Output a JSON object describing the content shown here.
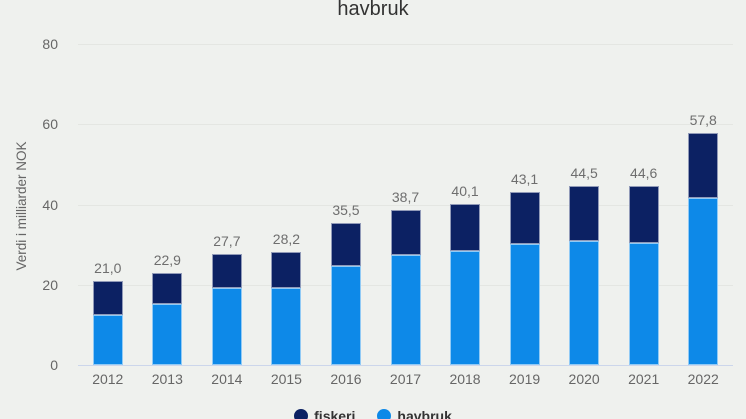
{
  "title": "havbruk",
  "y_axis": {
    "title": "Verdi i milliarder NOK",
    "ticks": [
      0,
      20,
      40,
      60,
      80
    ]
  },
  "legend": [
    {
      "label": "fiskeri",
      "color": "#0c2163"
    },
    {
      "label": "havbruk",
      "color": "#0d89e8"
    }
  ],
  "chart_data": {
    "type": "bar",
    "stacked": true,
    "title": "havbruk",
    "ylabel": "Verdi i milliarder NOK",
    "ylim": [
      0,
      80
    ],
    "grid": true,
    "legend_position": "bottom",
    "categories": [
      "2012",
      "2013",
      "2014",
      "2015",
      "2016",
      "2017",
      "2018",
      "2019",
      "2020",
      "2021",
      "2022"
    ],
    "series": [
      {
        "name": "havbruk",
        "color": "#0d89e8",
        "values": [
          12.5,
          15.1,
          19.3,
          19.1,
          24.7,
          27.4,
          28.3,
          30.1,
          30.8,
          30.5,
          41.5
        ]
      },
      {
        "name": "fiskeri",
        "color": "#0c2163",
        "values": [
          8.5,
          7.8,
          8.4,
          9.1,
          10.8,
          11.3,
          11.8,
          13.0,
          13.7,
          14.1,
          16.3
        ]
      }
    ],
    "totals": [
      21.0,
      22.9,
      27.7,
      28.2,
      35.5,
      38.7,
      40.1,
      43.1,
      44.5,
      44.6,
      57.8
    ],
    "total_labels": [
      "21,0",
      "22,9",
      "27,7",
      "28,2",
      "35,5",
      "38,7",
      "40,1",
      "43,1",
      "44,5",
      "44,6",
      "57,8"
    ]
  },
  "colors": {
    "background": "#eff1ee",
    "gridline": "#e4e6e2",
    "axis_line": "#ccd6eb",
    "tick_label": "#666666",
    "value_label": "#6e6e6e",
    "title": "#333333"
  }
}
